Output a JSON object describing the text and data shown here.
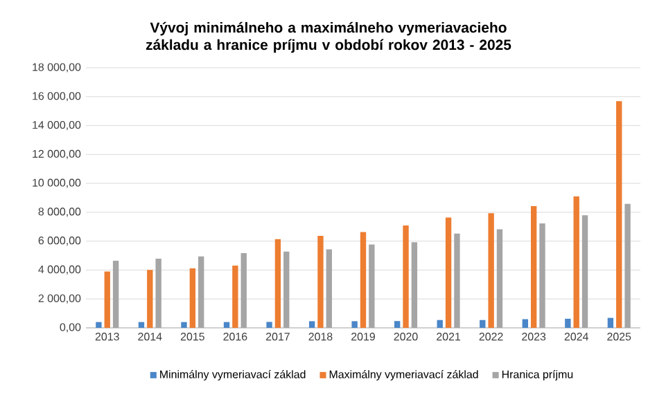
{
  "chart_data": {
    "type": "bar",
    "title": "Vývoj minimálneho a maximálneho vymeriavacieho základu a hranice príjmu v období rokov 2013 - 2025",
    "categories": [
      "2013",
      "2014",
      "2015",
      "2016",
      "2017",
      "2018",
      "2019",
      "2020",
      "2021",
      "2022",
      "2023",
      "2024",
      "2025"
    ],
    "series": [
      {
        "name": "Minimálny vymeriavací základ",
        "color": "#4a86c8",
        "values": [
          400,
          400,
          400,
          400,
          410,
          460,
          460,
          470,
          540,
          540,
          600,
          630,
          690
        ]
      },
      {
        "name": "Maximálny vymeriavací základ",
        "color": "#ed7d31",
        "values": [
          3900,
          4010,
          4120,
          4310,
          6140,
          6370,
          6630,
          7080,
          7640,
          7940,
          8430,
          9100,
          15690
        ]
      },
      {
        "name": "Hranica príjmu",
        "color": "#a5a5a5",
        "values": [
          4640,
          4790,
          4940,
          5170,
          5280,
          5430,
          5770,
          5920,
          6520,
          6820,
          7230,
          7790,
          8580
        ]
      }
    ],
    "ylim": [
      0,
      18000
    ],
    "yticks": [
      {
        "value": 0,
        "label": "0,00"
      },
      {
        "value": 2000,
        "label": "2 000,00"
      },
      {
        "value": 4000,
        "label": "4 000,00"
      },
      {
        "value": 6000,
        "label": "6 000,00"
      },
      {
        "value": 8000,
        "label": "8 000,00"
      },
      {
        "value": 10000,
        "label": "10 000,00"
      },
      {
        "value": 12000,
        "label": "12 000,00"
      },
      {
        "value": 14000,
        "label": "14 000,00"
      },
      {
        "value": 16000,
        "label": "16 000,00"
      },
      {
        "value": 18000,
        "label": "18 000,00"
      }
    ],
    "grid": "y",
    "legend": "bottom"
  }
}
